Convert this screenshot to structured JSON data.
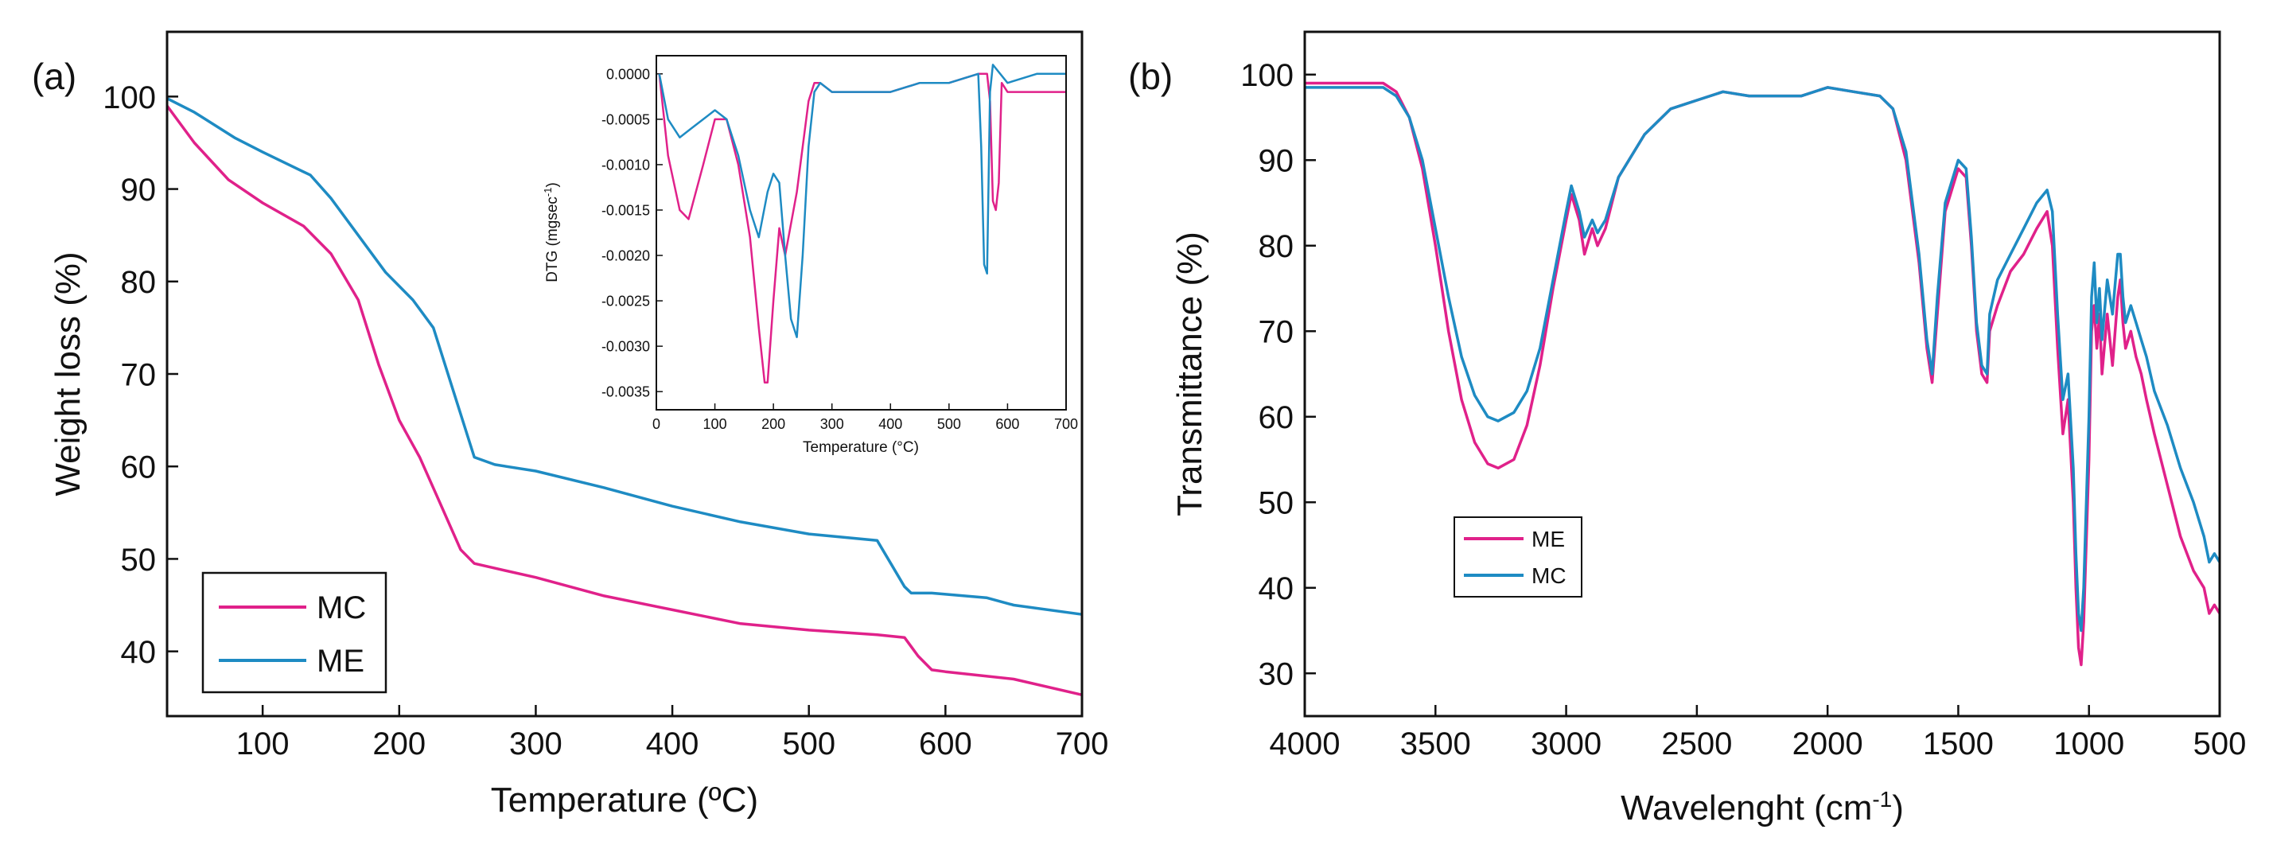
{
  "chart_data": [
    {
      "panel_label": "(a)",
      "type": "line",
      "title": "",
      "xlabel": "Temperature (ºC)",
      "ylabel": "Weight loss (%)",
      "xlim": [
        30,
        700
      ],
      "ylim": [
        33,
        107
      ],
      "xticks": [
        100,
        200,
        300,
        400,
        500,
        600,
        700
      ],
      "yticks": [
        40,
        50,
        60,
        70,
        80,
        90,
        100
      ],
      "legend": {
        "position": "bottom-left",
        "entries": [
          "MC",
          "ME"
        ]
      },
      "series": [
        {
          "name": "MC",
          "color": "#e0218a",
          "x": [
            30,
            50,
            75,
            100,
            130,
            150,
            170,
            185,
            200,
            215,
            230,
            245,
            255,
            270,
            300,
            350,
            400,
            450,
            500,
            550,
            570,
            580,
            590,
            600,
            650,
            700
          ],
          "y": [
            99,
            95,
            91,
            88.5,
            86,
            83,
            78,
            71,
            65,
            61,
            56,
            51,
            49.5,
            49,
            48,
            46,
            44.5,
            43,
            42.3,
            41.8,
            41.5,
            39.5,
            38,
            37.8,
            37,
            35.3
          ]
        },
        {
          "name": "ME",
          "color": "#1e8bc3",
          "x": [
            30,
            50,
            80,
            100,
            135,
            150,
            170,
            190,
            210,
            225,
            240,
            255,
            270,
            300,
            350,
            400,
            450,
            500,
            550,
            560,
            570,
            575,
            590,
            630,
            650,
            700
          ],
          "y": [
            99.8,
            98.3,
            95.5,
            94,
            91.5,
            89,
            85,
            81,
            78,
            75,
            68,
            61,
            60.2,
            59.5,
            57.7,
            55.7,
            54,
            52.7,
            52,
            49.5,
            47,
            46.3,
            46.3,
            45.8,
            45,
            44
          ]
        }
      ],
      "inset": {
        "type": "line",
        "xlabel": "Temperature (°C)",
        "ylabel": "DTG (mgsec-1)",
        "ylabel_main": "DTG (mgsec",
        "ylabel_sup": "-1",
        "ylabel_close": ")",
        "xlim": [
          0,
          700
        ],
        "ylim": [
          -0.0037,
          0.0002
        ],
        "xticks": [
          0,
          100,
          200,
          300,
          400,
          500,
          600,
          700
        ],
        "xtick_labels": [
          "0",
          "100",
          "200",
          "300",
          "400",
          "500",
          "600",
          "700"
        ],
        "yticks": [
          0.0,
          -0.0005,
          -0.001,
          -0.0015,
          -0.002,
          -0.0025,
          -0.003,
          -0.0035
        ],
        "ytick_labels": [
          "0.0000",
          "-0.0005",
          "-0.0010",
          "-0.0015",
          "-0.0020",
          "-0.0025",
          "-0.0030",
          "-0.0035"
        ],
        "series": [
          {
            "name": "MC",
            "color": "#e0218a",
            "x": [
              5,
              20,
              40,
              55,
              80,
              100,
              120,
              140,
              160,
              175,
              185,
              190,
              200,
              210,
              220,
              240,
              260,
              270,
              280,
              300,
              350,
              400,
              450,
              500,
              550,
              565,
              570,
              575,
              580,
              585,
              590,
              600,
              650,
              700
            ],
            "y": [
              0.0,
              -0.0009,
              -0.0015,
              -0.0016,
              -0.001,
              -0.0005,
              -0.0005,
              -0.001,
              -0.0018,
              -0.0028,
              -0.0034,
              -0.0034,
              -0.0025,
              -0.0017,
              -0.002,
              -0.0013,
              -0.0003,
              -0.0001,
              -0.0001,
              -0.0002,
              -0.0002,
              -0.0002,
              -0.0001,
              -0.0001,
              0.0,
              0.0,
              -0.0003,
              -0.0014,
              -0.0015,
              -0.0012,
              -0.0001,
              -0.0002,
              -0.0002,
              -0.0002
            ]
          },
          {
            "name": "ME",
            "color": "#1e8bc3",
            "x": [
              5,
              20,
              40,
              60,
              80,
              100,
              120,
              140,
              160,
              175,
              190,
              200,
              210,
              220,
              230,
              240,
              250,
              260,
              270,
              280,
              300,
              350,
              400,
              450,
              500,
              550,
              555,
              560,
              565,
              570,
              575,
              600,
              650,
              700
            ],
            "y": [
              0.0,
              -0.0005,
              -0.0007,
              -0.0006,
              -0.0005,
              -0.0004,
              -0.0005,
              -0.0009,
              -0.0015,
              -0.0018,
              -0.0013,
              -0.0011,
              -0.0012,
              -0.002,
              -0.0027,
              -0.0029,
              -0.002,
              -0.0008,
              -0.0002,
              -0.0001,
              -0.0002,
              -0.0002,
              -0.0002,
              -0.0001,
              -0.0001,
              0.0,
              -0.0008,
              -0.0021,
              -0.0022,
              -0.0002,
              0.0001,
              -0.0001,
              0.0,
              0.0
            ]
          }
        ]
      }
    },
    {
      "panel_label": "(b)",
      "type": "line",
      "title": "",
      "xlabel": "Wavelenght (cm-1)",
      "xlabel_main": "Wavelenght (cm",
      "xlabel_sup": "-1",
      "xlabel_close": ")",
      "ylabel": "Transmittance (%)",
      "xlim": [
        4000,
        500
      ],
      "ylim": [
        25,
        105
      ],
      "xticks": [
        4000,
        3500,
        3000,
        2500,
        2000,
        1500,
        1000,
        500
      ],
      "yticks": [
        30,
        40,
        50,
        60,
        70,
        80,
        90,
        100
      ],
      "legend": {
        "position": "center-left",
        "entries": [
          "ME",
          "MC"
        ]
      },
      "series": [
        {
          "name": "ME",
          "color": "#e0218a",
          "x": [
            4000,
            3800,
            3700,
            3650,
            3600,
            3550,
            3500,
            3450,
            3400,
            3350,
            3300,
            3260,
            3200,
            3150,
            3100,
            3050,
            3000,
            2980,
            2950,
            2930,
            2900,
            2880,
            2850,
            2800,
            2700,
            2600,
            2500,
            2400,
            2300,
            2100,
            2000,
            1900,
            1800,
            1750,
            1700,
            1650,
            1620,
            1600,
            1580,
            1550,
            1500,
            1470,
            1450,
            1430,
            1410,
            1390,
            1380,
            1350,
            1300,
            1250,
            1200,
            1160,
            1140,
            1120,
            1100,
            1080,
            1060,
            1050,
            1040,
            1030,
            1020,
            1000,
            990,
            980,
            970,
            960,
            950,
            930,
            910,
            890,
            880,
            870,
            860,
            840,
            820,
            800,
            780,
            750,
            700,
            650,
            600,
            560,
            540,
            520,
            500
          ],
          "y": [
            99,
            99,
            99,
            98,
            95,
            89,
            80,
            70,
            62,
            57,
            54.5,
            54,
            55,
            59,
            66,
            75,
            83,
            86,
            83,
            79,
            82,
            80,
            82,
            88,
            93,
            96,
            97,
            98,
            97.5,
            97.5,
            98.5,
            98,
            97.5,
            96,
            90,
            78,
            68,
            64,
            72,
            84,
            89,
            88,
            80,
            70,
            65,
            64,
            70,
            73,
            77,
            79,
            82,
            84,
            80,
            68,
            58,
            62,
            50,
            40,
            33,
            31,
            36,
            55,
            70,
            73,
            68,
            72,
            65,
            72,
            66,
            74,
            76,
            71,
            68,
            70,
            67,
            65,
            62,
            58,
            52,
            46,
            42,
            40,
            37,
            38,
            37
          ]
        },
        {
          "name": "MC",
          "color": "#1e8bc3",
          "x": [
            4000,
            3800,
            3700,
            3650,
            3600,
            3550,
            3500,
            3450,
            3400,
            3350,
            3300,
            3260,
            3200,
            3150,
            3100,
            3050,
            3000,
            2980,
            2950,
            2930,
            2900,
            2880,
            2850,
            2800,
            2700,
            2600,
            2500,
            2400,
            2300,
            2100,
            2000,
            1900,
            1800,
            1750,
            1700,
            1650,
            1620,
            1600,
            1580,
            1550,
            1500,
            1470,
            1450,
            1430,
            1410,
            1390,
            1380,
            1350,
            1300,
            1250,
            1200,
            1160,
            1140,
            1120,
            1100,
            1080,
            1060,
            1050,
            1040,
            1030,
            1020,
            1000,
            990,
            980,
            970,
            960,
            950,
            930,
            910,
            890,
            880,
            870,
            860,
            840,
            820,
            800,
            780,
            750,
            700,
            650,
            600,
            560,
            540,
            520,
            500
          ],
          "y": [
            98.5,
            98.5,
            98.5,
            97.5,
            95,
            90,
            82,
            74,
            67,
            62.5,
            60,
            59.5,
            60.5,
            63,
            68,
            76,
            84,
            87,
            84,
            81,
            83,
            81.5,
            83,
            88,
            93,
            96,
            97,
            98,
            97.5,
            97.5,
            98.5,
            98,
            97.5,
            96,
            91,
            79,
            69,
            65,
            74,
            85,
            90,
            89,
            81,
            71,
            66,
            65,
            72,
            76,
            79,
            82,
            85,
            86.5,
            84,
            72,
            62,
            65,
            54,
            44,
            37,
            35,
            40,
            60,
            74,
            78,
            71,
            75,
            69,
            76,
            72,
            79,
            79,
            74,
            71,
            73,
            71,
            69,
            67,
            63,
            59,
            54,
            50,
            46,
            43,
            44,
            43
          ]
        }
      ]
    }
  ]
}
